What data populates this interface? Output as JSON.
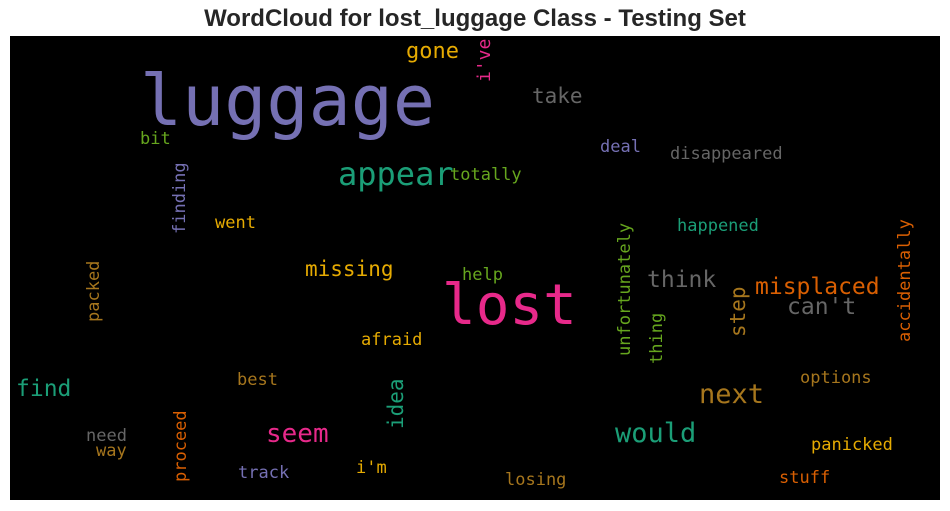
{
  "chart_data": {
    "type": "wordcloud",
    "title": "WordCloud for lost_luggage Class - Testing Set",
    "background": "#000000",
    "palette": [
      "#7570b3",
      "#e7298a",
      "#1b9e77",
      "#e6ab02",
      "#66a61e",
      "#d95f02",
      "#a6761d",
      "#666666"
    ],
    "words": [
      {
        "text": "luggage",
        "color": "#7570b3"
      },
      {
        "text": "lost",
        "color": "#e7298a"
      },
      {
        "text": "appear",
        "color": "#1b9e77"
      },
      {
        "text": "gone",
        "color": "#e6ab02"
      },
      {
        "text": "i've",
        "color": "#e7298a"
      },
      {
        "text": "take",
        "color": "#666666"
      },
      {
        "text": "bit",
        "color": "#66a61e"
      },
      {
        "text": "deal",
        "color": "#7570b3"
      },
      {
        "text": "disappeared",
        "color": "#666666"
      },
      {
        "text": "totally",
        "color": "#66a61e"
      },
      {
        "text": "finding",
        "color": "#7570b3"
      },
      {
        "text": "went",
        "color": "#e6ab02"
      },
      {
        "text": "happened",
        "color": "#1b9e77"
      },
      {
        "text": "unfortunately",
        "color": "#66a61e"
      },
      {
        "text": "accidentally",
        "color": "#d95f02"
      },
      {
        "text": "missing",
        "color": "#e6ab02"
      },
      {
        "text": "help",
        "color": "#66a61e"
      },
      {
        "text": "think",
        "color": "#666666"
      },
      {
        "text": "misplaced",
        "color": "#d95f02"
      },
      {
        "text": "packed",
        "color": "#a6761d"
      },
      {
        "text": "step",
        "color": "#a6761d"
      },
      {
        "text": "can't",
        "color": "#666666"
      },
      {
        "text": "thing",
        "color": "#66a61e"
      },
      {
        "text": "afraid",
        "color": "#e6ab02"
      },
      {
        "text": "find",
        "color": "#1b9e77"
      },
      {
        "text": "best",
        "color": "#a6761d"
      },
      {
        "text": "next",
        "color": "#a6761d"
      },
      {
        "text": "options",
        "color": "#a6761d"
      },
      {
        "text": "proceed",
        "color": "#d95f02"
      },
      {
        "text": "idea",
        "color": "#1b9e77"
      },
      {
        "text": "seem",
        "color": "#e7298a"
      },
      {
        "text": "would",
        "color": "#1b9e77"
      },
      {
        "text": "need",
        "color": "#666666"
      },
      {
        "text": "way",
        "color": "#a6761d"
      },
      {
        "text": "panicked",
        "color": "#e6ab02"
      },
      {
        "text": "i'm",
        "color": "#e6ab02"
      },
      {
        "text": "track",
        "color": "#7570b3"
      },
      {
        "text": "losing",
        "color": "#a6761d"
      },
      {
        "text": "stuff",
        "color": "#d95f02"
      }
    ]
  }
}
